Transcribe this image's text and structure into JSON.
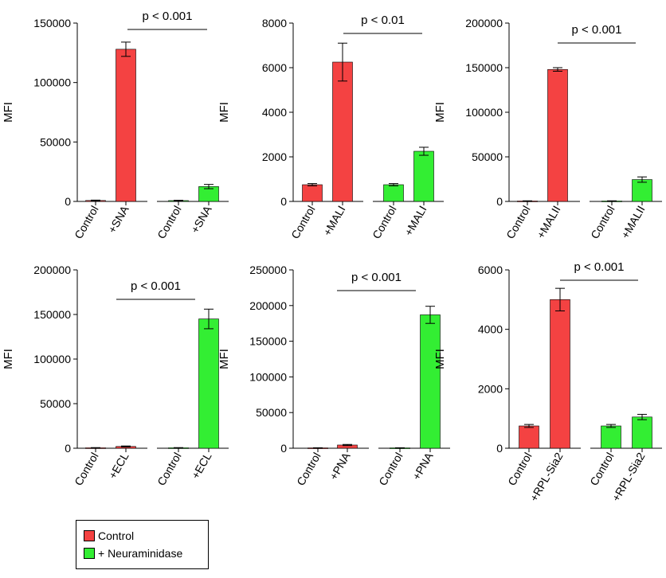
{
  "colors": {
    "control": "#f44242",
    "neuraminidase": "#33ee33",
    "axis": "#000000"
  },
  "legend": {
    "items": [
      {
        "label": "Control",
        "color": "#f44242"
      },
      {
        "label": "+ Neuraminidase",
        "color": "#33ee33"
      }
    ]
  },
  "chart_data": [
    {
      "type": "bar",
      "ylabel": "MFI",
      "ylim": [
        0,
        150000
      ],
      "yticks": [
        0,
        50000,
        100000,
        150000
      ],
      "categories": [
        "Control",
        "+SNA",
        "Control",
        "+SNA"
      ],
      "values": [
        800,
        128000,
        700,
        12500
      ],
      "errors": [
        300,
        6000,
        300,
        1800
      ],
      "groups": [
        "control",
        "control",
        "neuraminidase",
        "neuraminidase"
      ],
      "annotation": "p < 0.001",
      "annotation_span": [
        2,
        4
      ]
    },
    {
      "type": "bar",
      "ylabel": "MFI",
      "ylim": [
        0,
        8000
      ],
      "yticks": [
        0,
        2000,
        4000,
        6000,
        8000
      ],
      "categories": [
        "Control",
        "+MALI",
        "Control",
        "+MALI"
      ],
      "values": [
        750,
        6250,
        750,
        2250
      ],
      "errors": [
        50,
        850,
        50,
        180
      ],
      "groups": [
        "control",
        "control",
        "neuraminidase",
        "neuraminidase"
      ],
      "annotation": "p < 0.01",
      "annotation_span": [
        2,
        4
      ]
    },
    {
      "type": "bar",
      "ylabel": "MFI",
      "ylim": [
        0,
        200000
      ],
      "yticks": [
        0,
        50000,
        100000,
        150000,
        200000
      ],
      "categories": [
        "Control",
        "+MALII",
        "Control",
        "+MALII"
      ],
      "values": [
        500,
        148000,
        500,
        24500
      ],
      "errors": [
        200,
        2000,
        200,
        3000
      ],
      "groups": [
        "control",
        "control",
        "neuraminidase",
        "neuraminidase"
      ],
      "annotation": "p < 0.001",
      "annotation_span": [
        2,
        4
      ]
    },
    {
      "type": "bar",
      "ylabel": "MFI",
      "ylim": [
        0,
        200000
      ],
      "yticks": [
        0,
        50000,
        100000,
        150000,
        200000
      ],
      "categories": [
        "Control",
        "+ECL",
        "Control",
        "+ECL"
      ],
      "values": [
        500,
        2000,
        500,
        145000
      ],
      "errors": [
        200,
        500,
        200,
        11000
      ],
      "groups": [
        "control",
        "control",
        "neuraminidase",
        "neuraminidase"
      ],
      "annotation": "p < 0.001",
      "annotation_span": [
        2,
        4
      ]
    },
    {
      "type": "bar",
      "ylabel": "MFI",
      "ylim": [
        0,
        250000
      ],
      "yticks": [
        0,
        50000,
        100000,
        150000,
        200000,
        250000
      ],
      "categories": [
        "Control",
        "+PNA",
        "Control",
        "+PNA"
      ],
      "values": [
        500,
        4500,
        500,
        187000
      ],
      "errors": [
        200,
        800,
        200,
        12000
      ],
      "groups": [
        "control",
        "control",
        "neuraminidase",
        "neuraminidase"
      ],
      "annotation": "p < 0.001",
      "annotation_span": [
        2,
        4
      ]
    },
    {
      "type": "bar",
      "ylabel": "MFI",
      "ylim": [
        0,
        6000
      ],
      "yticks": [
        0,
        2000,
        4000,
        6000
      ],
      "categories": [
        "Control",
        "+RPL-Sia2",
        "Control",
        "+RPL-Sia2"
      ],
      "values": [
        750,
        5000,
        750,
        1050
      ],
      "errors": [
        50,
        380,
        50,
        90
      ],
      "groups": [
        "control",
        "control",
        "neuraminidase",
        "neuraminidase"
      ],
      "annotation": "p < 0.001",
      "annotation_span": [
        2,
        4
      ]
    }
  ]
}
